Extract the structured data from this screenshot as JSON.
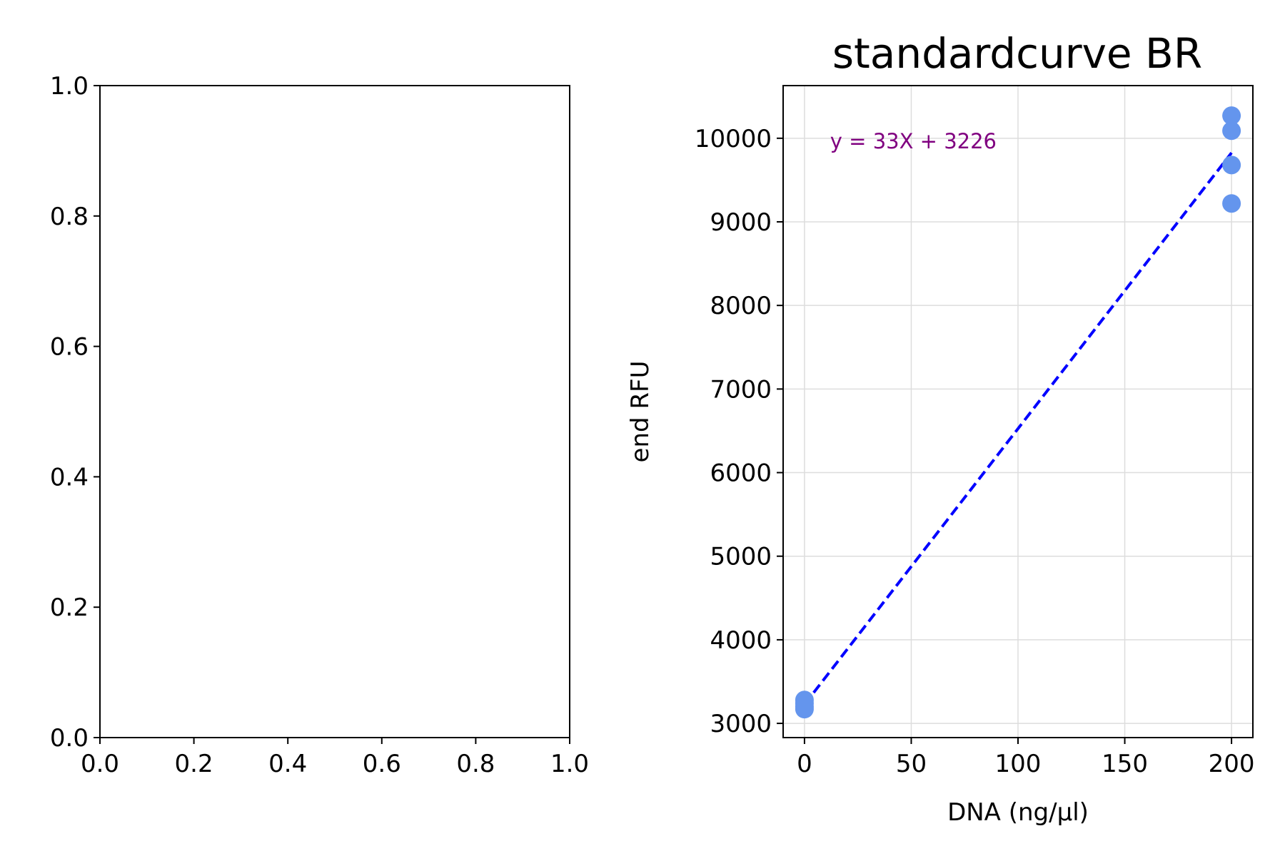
{
  "chart_data": [
    {
      "type": "scatter",
      "title": "",
      "xlabel": "",
      "ylabel": "",
      "xlim": [
        0,
        1
      ],
      "ylim": [
        0,
        1
      ],
      "x_ticks": [
        "0.0",
        "0.2",
        "0.4",
        "0.6",
        "0.8",
        "1.0"
      ],
      "y_ticks": [
        "0.0",
        "0.2",
        "0.4",
        "0.6",
        "0.8",
        "1.0"
      ],
      "series": []
    },
    {
      "type": "scatter",
      "title": "standardcurve BR",
      "xlabel": "DNA (ng/µl)",
      "ylabel": "end RFU",
      "xlim": [
        -10,
        210
      ],
      "ylim": [
        2830,
        10630
      ],
      "grid": true,
      "x_ticks": [
        "0",
        "50",
        "100",
        "150",
        "200"
      ],
      "y_ticks": [
        "3000",
        "4000",
        "5000",
        "6000",
        "7000",
        "8000",
        "9000",
        "10000"
      ],
      "series": [
        {
          "x": [
            0,
            0,
            0,
            0,
            200,
            200,
            200,
            200
          ],
          "y": [
            3280,
            3240,
            3200,
            3170,
            10270,
            10090,
            9680,
            9220
          ],
          "color": "#6495ed"
        }
      ],
      "fit_line": {
        "slope": 33,
        "intercept": 3226,
        "x_range": [
          0,
          200
        ],
        "color": "#0000ff",
        "style": "dashed"
      },
      "annotation": {
        "text": "y = 33X + 3226",
        "x": 12,
        "y": 9880,
        "color": "#800080"
      }
    }
  ]
}
